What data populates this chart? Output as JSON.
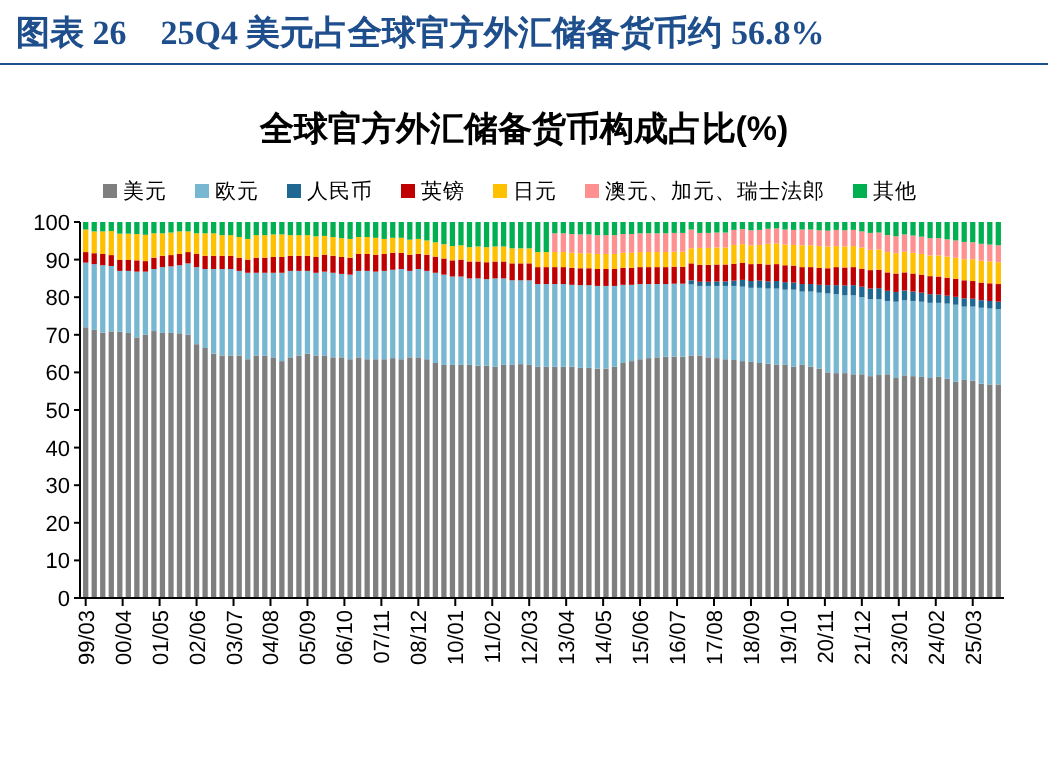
{
  "chart_data": {
    "type": "bar",
    "stacked": true,
    "title": "图表 26　25Q4 美元占全球官方外汇储备货币约 56.8%",
    "subtitle": "全球官方外汇储备货币构成占比(%)",
    "legend": "top",
    "x": [
      "1999-03",
      "1999-06",
      "1999-09",
      "1999-12",
      "2000-03",
      "2000-06",
      "2000-09",
      "2000-12",
      "2001-03",
      "2001-06",
      "2001-09",
      "2001-12",
      "2002-03",
      "2002-06",
      "2002-09",
      "2002-12",
      "2003-03",
      "2003-06",
      "2003-09",
      "2003-12",
      "2004-03",
      "2004-06",
      "2004-09",
      "2004-12",
      "2005-03",
      "2005-06",
      "2005-09",
      "2005-12",
      "2006-03",
      "2006-06",
      "2006-09",
      "2006-12",
      "2007-03",
      "2007-06",
      "2007-09",
      "2007-12",
      "2008-03",
      "2008-06",
      "2008-09",
      "2008-12",
      "2009-03",
      "2009-06",
      "2009-09",
      "2009-12",
      "2010-03",
      "2010-06",
      "2010-09",
      "2010-12",
      "2011-03",
      "2011-06",
      "2011-09",
      "2011-12",
      "2012-03",
      "2012-06",
      "2012-09",
      "2012-12",
      "2013-03",
      "2013-06",
      "2013-09",
      "2013-12",
      "2014-03",
      "2014-06",
      "2014-09",
      "2014-12",
      "2015-03",
      "2015-06",
      "2015-09",
      "2015-12",
      "2016-03",
      "2016-06",
      "2016-09",
      "2016-12",
      "2017-03",
      "2017-06",
      "2017-09",
      "2017-12",
      "2018-03",
      "2018-06",
      "2018-09",
      "2018-12",
      "2019-03",
      "2019-06",
      "2019-09",
      "2019-12",
      "2020-03",
      "2020-06",
      "2020-09",
      "2020-12",
      "2021-03",
      "2021-06",
      "2021-09",
      "2021-12",
      "2022-03",
      "2022-06",
      "2022-09",
      "2022-12",
      "2023-03",
      "2023-06",
      "2023-09",
      "2023-12",
      "2024-03",
      "2024-06",
      "2024-09",
      "2024-12",
      "2025-03",
      "2025-06",
      "2025-09",
      "2025-12"
    ],
    "xlim": [
      "1999-01",
      "2026-02"
    ],
    "xticks": [
      {
        "value": "1999-03",
        "label": "99/03"
      },
      {
        "value": "2000-04",
        "label": "00/04"
      },
      {
        "value": "2001-05",
        "label": "01/05"
      },
      {
        "value": "2002-06",
        "label": "02/06"
      },
      {
        "value": "2003-07",
        "label": "03/07"
      },
      {
        "value": "2004-08",
        "label": "04/08"
      },
      {
        "value": "2005-09",
        "label": "05/09"
      },
      {
        "value": "2006-10",
        "label": "06/10"
      },
      {
        "value": "2007-11",
        "label": "07/11"
      },
      {
        "value": "2008-12",
        "label": "08/12"
      },
      {
        "value": "2010-01",
        "label": "10/01"
      },
      {
        "value": "2011-02",
        "label": "11/02"
      },
      {
        "value": "2012-03",
        "label": "12/03"
      },
      {
        "value": "2013-04",
        "label": "13/04"
      },
      {
        "value": "2014-05",
        "label": "14/05"
      },
      {
        "value": "2015-06",
        "label": "15/06"
      },
      {
        "value": "2016-07",
        "label": "16/07"
      },
      {
        "value": "2017-08",
        "label": "17/08"
      },
      {
        "value": "2018-09",
        "label": "18/09"
      },
      {
        "value": "2019-10",
        "label": "19/10"
      },
      {
        "value": "2020-11",
        "label": "20/11"
      },
      {
        "value": "2021-12",
        "label": "21/12"
      },
      {
        "value": "2023-01",
        "label": "23/01"
      },
      {
        "value": "2024-02",
        "label": "24/02"
      },
      {
        "value": "2025-03",
        "label": "25/03"
      }
    ],
    "ylim": [
      0,
      100
    ],
    "yticks": [
      0,
      10,
      20,
      30,
      40,
      50,
      60,
      70,
      80,
      90,
      100
    ],
    "series": [
      {
        "name": "美元",
        "color": "#7f7f7f",
        "values": [
          72.0,
          71.3,
          70.6,
          70.9,
          70.8,
          70.5,
          69.3,
          70.0,
          71.0,
          70.5,
          70.5,
          70.4,
          70.0,
          67.5,
          66.5,
          65.0,
          64.5,
          64.5,
          64.5,
          63.5,
          64.5,
          64.5,
          64.0,
          63.0,
          64.0,
          64.5,
          65.0,
          64.5,
          64.5,
          64.0,
          64.0,
          63.5,
          64.0,
          63.5,
          63.5,
          63.5,
          63.8,
          63.5,
          64.0,
          64.0,
          63.5,
          62.5,
          62.0,
          62.0,
          62.0,
          62.0,
          61.8,
          61.8,
          61.5,
          62.0,
          62.0,
          62.2,
          62.0,
          61.5,
          61.5,
          61.5,
          61.5,
          61.5,
          61.2,
          61.2,
          61.0,
          61.0,
          61.5,
          62.5,
          63.0,
          63.5,
          63.8,
          64.0,
          64.2,
          64.2,
          64.2,
          64.5,
          64.5,
          64.0,
          63.8,
          63.5,
          63.3,
          63.0,
          62.8,
          62.5,
          62.3,
          62.0,
          62.0,
          61.5,
          62.0,
          61.5,
          61.0,
          60.0,
          59.8,
          59.8,
          59.5,
          59.5,
          59.0,
          59.3,
          59.5,
          58.5,
          59.2,
          59.0,
          58.8,
          58.5,
          58.8,
          58.3,
          57.5,
          58.0,
          57.8,
          57.0,
          56.8,
          56.8
        ]
      },
      {
        "name": "欧元",
        "color": "#78b7d1",
        "values": [
          17.2,
          17.5,
          17.9,
          17.4,
          16.2,
          16.5,
          17.5,
          16.8,
          16.5,
          17.5,
          17.7,
          18.1,
          19.0,
          20.5,
          21.0,
          22.5,
          23.0,
          23.0,
          22.5,
          23.0,
          22.0,
          22.0,
          22.5,
          23.5,
          23.0,
          22.5,
          22.0,
          22.0,
          22.3,
          22.5,
          22.2,
          22.5,
          23.0,
          23.5,
          23.3,
          23.5,
          23.5,
          24.0,
          23.0,
          23.5,
          23.5,
          24.0,
          24.0,
          23.5,
          23.5,
          23.0,
          23.2,
          23.0,
          23.5,
          23.0,
          22.5,
          22.3,
          22.5,
          22.0,
          22.0,
          22.0,
          22.0,
          21.8,
          22.0,
          22.0,
          22.0,
          22.0,
          21.5,
          20.8,
          20.3,
          20.0,
          19.7,
          19.5,
          19.3,
          19.4,
          19.4,
          18.9,
          18.5,
          19.0,
          19.2,
          19.5,
          19.7,
          19.8,
          19.7,
          20.0,
          20.0,
          20.3,
          20.0,
          20.5,
          19.5,
          20.0,
          20.2,
          21.0,
          21.0,
          20.7,
          21.0,
          20.5,
          20.5,
          20.2,
          19.5,
          20.3,
          20.0,
          20.0,
          20.0,
          20.0,
          19.7,
          20.0,
          20.5,
          19.5,
          19.7,
          20.2,
          20.2,
          20.0
        ]
      },
      {
        "name": "人民币",
        "color": "#1f6891",
        "values": [
          null,
          null,
          null,
          null,
          null,
          null,
          null,
          null,
          null,
          null,
          null,
          null,
          null,
          null,
          null,
          null,
          null,
          null,
          null,
          null,
          null,
          null,
          null,
          null,
          null,
          null,
          null,
          null,
          null,
          null,
          null,
          null,
          null,
          null,
          null,
          null,
          null,
          null,
          null,
          null,
          null,
          null,
          null,
          null,
          null,
          null,
          null,
          null,
          null,
          null,
          null,
          null,
          null,
          null,
          null,
          null,
          null,
          null,
          null,
          null,
          null,
          null,
          null,
          null,
          null,
          null,
          null,
          null,
          null,
          null,
          null,
          1.1,
          1.1,
          1.1,
          1.2,
          1.2,
          1.4,
          1.8,
          1.8,
          1.9,
          1.9,
          2.0,
          2.0,
          1.9,
          2.0,
          2.0,
          2.1,
          2.2,
          2.4,
          2.6,
          2.7,
          2.8,
          2.8,
          2.9,
          2.7,
          2.6,
          2.6,
          2.5,
          2.4,
          2.3,
          2.2,
          2.1,
          2.1,
          2.2,
          2.1,
          2.0,
          2.0,
          2.0
        ]
      },
      {
        "name": "英镑",
        "color": "#c00000",
        "values": [
          2.8,
          2.9,
          3.0,
          2.9,
          2.9,
          2.9,
          3.0,
          2.8,
          3.0,
          3.0,
          3.0,
          3.0,
          3.0,
          3.5,
          3.5,
          3.5,
          3.5,
          3.5,
          3.5,
          3.5,
          4.0,
          4.0,
          4.2,
          4.2,
          4.0,
          4.0,
          4.0,
          4.2,
          4.5,
          4.5,
          4.5,
          4.5,
          4.5,
          4.5,
          4.5,
          4.5,
          4.5,
          4.3,
          4.3,
          4.0,
          4.3,
          4.3,
          4.3,
          4.3,
          4.5,
          4.5,
          4.5,
          4.5,
          4.5,
          4.5,
          4.5,
          4.5,
          4.5,
          4.5,
          4.5,
          4.5,
          4.5,
          4.5,
          4.5,
          4.5,
          4.5,
          4.5,
          4.5,
          4.5,
          4.5,
          4.5,
          4.5,
          4.5,
          4.5,
          4.5,
          4.5,
          4.5,
          4.5,
          4.5,
          4.5,
          4.5,
          4.5,
          4.5,
          4.5,
          4.5,
          4.5,
          4.5,
          4.5,
          4.5,
          4.5,
          4.5,
          4.5,
          4.5,
          4.8,
          4.8,
          4.8,
          4.8,
          4.9,
          4.9,
          4.9,
          4.9,
          4.8,
          4.8,
          4.8,
          4.8,
          4.8,
          4.8,
          4.8,
          4.8,
          4.7,
          4.7,
          4.7,
          4.7
        ]
      },
      {
        "name": "日元",
        "color": "#ffc000",
        "values": [
          6.0,
          5.8,
          6.0,
          6.4,
          7.0,
          7.0,
          7.0,
          7.0,
          6.5,
          6.0,
          6.0,
          6.0,
          5.5,
          5.5,
          6.0,
          6.0,
          5.5,
          5.5,
          5.5,
          5.5,
          6.0,
          6.0,
          6.0,
          6.0,
          5.5,
          5.5,
          5.5,
          5.5,
          5.0,
          5.0,
          5.0,
          5.0,
          4.5,
          4.5,
          4.5,
          4.0,
          4.0,
          4.0,
          4.0,
          4.0,
          3.8,
          3.8,
          3.8,
          3.8,
          3.8,
          3.8,
          4.0,
          4.0,
          4.0,
          4.0,
          4.0,
          4.0,
          4.0,
          4.0,
          4.0,
          4.0,
          4.0,
          4.0,
          4.0,
          4.0,
          4.0,
          4.0,
          4.0,
          4.0,
          4.0,
          4.0,
          4.0,
          4.0,
          4.0,
          4.0,
          4.0,
          4.0,
          4.5,
          4.5,
          4.5,
          4.5,
          5.0,
          5.0,
          5.0,
          5.0,
          5.5,
          5.5,
          5.5,
          5.5,
          5.8,
          5.8,
          5.8,
          5.8,
          5.6,
          5.6,
          5.6,
          5.6,
          5.4,
          5.4,
          5.4,
          5.4,
          5.5,
          5.5,
          5.5,
          5.5,
          5.6,
          5.6,
          5.6,
          5.6,
          5.8,
          5.8,
          5.8,
          5.8
        ]
      },
      {
        "name": "澳元、加元、瑞士法郎",
        "color": "#ff9090",
        "values": [
          null,
          null,
          null,
          null,
          null,
          null,
          null,
          null,
          null,
          null,
          null,
          null,
          null,
          null,
          null,
          null,
          null,
          null,
          null,
          null,
          null,
          null,
          null,
          null,
          null,
          null,
          null,
          null,
          null,
          null,
          null,
          null,
          null,
          null,
          null,
          null,
          null,
          null,
          null,
          null,
          null,
          null,
          null,
          null,
          null,
          null,
          null,
          null,
          null,
          null,
          null,
          null,
          null,
          null,
          null,
          5.0,
          5.0,
          5.0,
          5.0,
          5.0,
          5.0,
          5.0,
          5.0,
          5.0,
          5.0,
          5.0,
          5.0,
          5.0,
          5.0,
          5.0,
          5.0,
          5.0,
          4.0,
          4.0,
          4.0,
          4.0,
          4.0,
          4.0,
          4.0,
          4.0,
          4.0,
          4.0,
          4.0,
          4.0,
          4.2,
          4.2,
          4.2,
          4.2,
          4.3,
          4.3,
          4.3,
          4.3,
          4.5,
          4.5,
          4.5,
          4.5,
          4.6,
          4.6,
          4.6,
          4.6,
          4.6,
          4.6,
          4.6,
          4.6,
          4.5,
          4.5,
          4.5,
          4.5
        ]
      },
      {
        "name": "其他",
        "color": "#00b050",
        "values": [
          2.0,
          2.5,
          2.5,
          2.4,
          3.1,
          3.1,
          3.2,
          3.4,
          3.0,
          3.0,
          2.8,
          2.5,
          2.5,
          3.0,
          3.0,
          3.0,
          3.5,
          3.5,
          4.0,
          4.5,
          3.5,
          3.5,
          3.3,
          3.3,
          3.5,
          3.5,
          3.5,
          3.8,
          3.7,
          4.0,
          4.3,
          4.5,
          4.0,
          4.0,
          4.2,
          4.5,
          4.2,
          4.2,
          4.7,
          4.5,
          4.9,
          5.4,
          5.9,
          6.4,
          6.2,
          6.7,
          6.5,
          6.7,
          6.5,
          6.5,
          7.0,
          7.0,
          7.0,
          8.0,
          8.0,
          3.0,
          3.0,
          3.2,
          3.3,
          3.3,
          3.5,
          3.5,
          3.5,
          3.2,
          3.2,
          3.0,
          3.0,
          3.0,
          3.0,
          2.9,
          2.9,
          2.0,
          2.9,
          2.9,
          2.8,
          2.8,
          2.1,
          1.9,
          2.2,
          2.1,
          1.8,
          1.7,
          2.0,
          2.1,
          2.0,
          2.0,
          2.2,
          2.3,
          2.1,
          2.2,
          2.1,
          2.5,
          2.9,
          2.8,
          3.5,
          3.8,
          3.3,
          3.6,
          3.9,
          4.3,
          4.3,
          4.6,
          4.9,
          5.3,
          5.4,
          5.8,
          6.0,
          6.2
        ]
      }
    ]
  }
}
